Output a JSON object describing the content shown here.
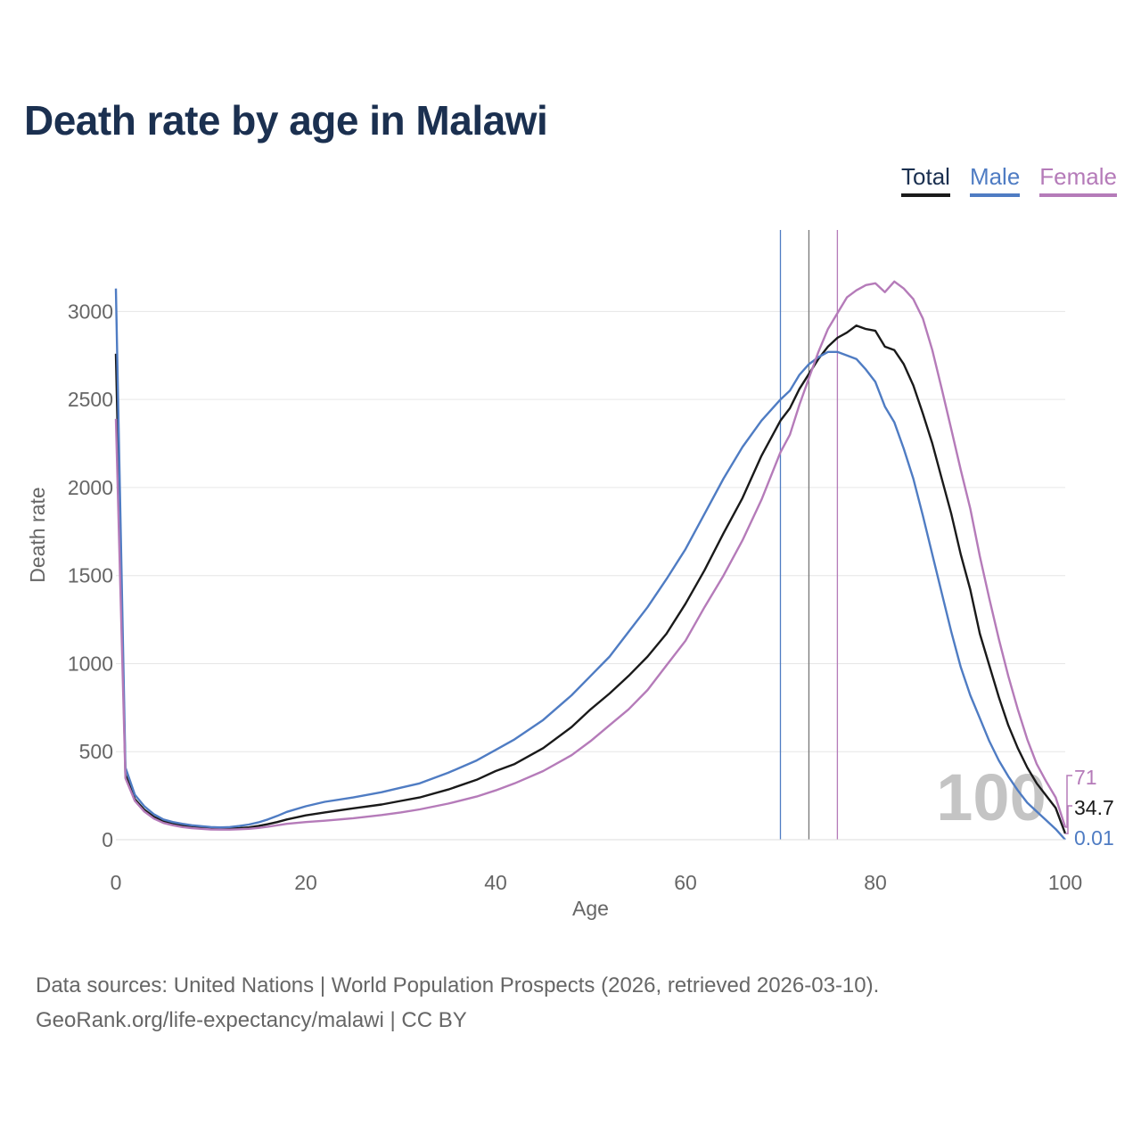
{
  "title": "Death rate by age in Malawi",
  "legend": [
    {
      "label": "Total",
      "color": "#1a1a1a"
    },
    {
      "label": "Male",
      "color": "#4f7cc3"
    },
    {
      "label": "Female",
      "color": "#b57bb9"
    }
  ],
  "watermark": "100",
  "end_labels": {
    "female": "71",
    "total": "34.7",
    "male": "0.01"
  },
  "footer": {
    "source": "Data sources: United Nations | World Population Prospects (2026, retrieved 2026-03-10).",
    "link": "GeoRank.org/life-expectancy/malawi | CC BY"
  },
  "chart_data": {
    "type": "line",
    "title": "Death rate by age in Malawi",
    "xlabel": "Age",
    "ylabel": "Death rate",
    "xlim": [
      0,
      100
    ],
    "ylim": [
      0,
      3250
    ],
    "x_ticks": [
      0,
      20,
      40,
      60,
      80,
      100
    ],
    "y_ticks": [
      0,
      500,
      1000,
      1500,
      2000,
      2500,
      3000
    ],
    "grid": true,
    "legend_position": "top-right",
    "vertical_markers": [
      {
        "series": "Male",
        "x": 70
      },
      {
        "series": "Total",
        "x": 73
      },
      {
        "series": "Female",
        "x": 76
      }
    ],
    "series": [
      {
        "name": "Total",
        "color": "#1a1a1a",
        "points": [
          [
            0,
            2760
          ],
          [
            1,
            370
          ],
          [
            2,
            230
          ],
          [
            3,
            170
          ],
          [
            4,
            130
          ],
          [
            5,
            105
          ],
          [
            6,
            92
          ],
          [
            7,
            82
          ],
          [
            8,
            75
          ],
          [
            9,
            70
          ],
          [
            10,
            66
          ],
          [
            11,
            64
          ],
          [
            12,
            64
          ],
          [
            13,
            66
          ],
          [
            14,
            70
          ],
          [
            15,
            78
          ],
          [
            16,
            88
          ],
          [
            17,
            100
          ],
          [
            18,
            115
          ],
          [
            20,
            138
          ],
          [
            22,
            155
          ],
          [
            25,
            178
          ],
          [
            28,
            200
          ],
          [
            30,
            220
          ],
          [
            32,
            240
          ],
          [
            35,
            285
          ],
          [
            38,
            340
          ],
          [
            40,
            390
          ],
          [
            42,
            430
          ],
          [
            45,
            520
          ],
          [
            48,
            640
          ],
          [
            50,
            740
          ],
          [
            52,
            830
          ],
          [
            54,
            930
          ],
          [
            56,
            1040
          ],
          [
            58,
            1170
          ],
          [
            60,
            1340
          ],
          [
            62,
            1530
          ],
          [
            64,
            1740
          ],
          [
            66,
            1940
          ],
          [
            68,
            2180
          ],
          [
            70,
            2380
          ],
          [
            71,
            2450
          ],
          [
            72,
            2560
          ],
          [
            74,
            2730
          ],
          [
            75,
            2800
          ],
          [
            76,
            2850
          ],
          [
            77,
            2880
          ],
          [
            78,
            2920
          ],
          [
            79,
            2900
          ],
          [
            80,
            2890
          ],
          [
            81,
            2800
          ],
          [
            82,
            2780
          ],
          [
            83,
            2700
          ],
          [
            84,
            2580
          ],
          [
            85,
            2420
          ],
          [
            86,
            2250
          ],
          [
            87,
            2050
          ],
          [
            88,
            1850
          ],
          [
            89,
            1620
          ],
          [
            90,
            1420
          ],
          [
            91,
            1170
          ],
          [
            92,
            990
          ],
          [
            93,
            810
          ],
          [
            94,
            650
          ],
          [
            95,
            520
          ],
          [
            96,
            410
          ],
          [
            97,
            320
          ],
          [
            98,
            250
          ],
          [
            99,
            180
          ],
          [
            100,
            34.7
          ]
        ]
      },
      {
        "name": "Male",
        "color": "#4f7cc3",
        "points": [
          [
            0,
            3130
          ],
          [
            1,
            410
          ],
          [
            2,
            255
          ],
          [
            3,
            190
          ],
          [
            4,
            145
          ],
          [
            5,
            115
          ],
          [
            6,
            100
          ],
          [
            7,
            90
          ],
          [
            8,
            82
          ],
          [
            9,
            77
          ],
          [
            10,
            72
          ],
          [
            11,
            70
          ],
          [
            12,
            72
          ],
          [
            13,
            78
          ],
          [
            14,
            86
          ],
          [
            15,
            98
          ],
          [
            16,
            115
          ],
          [
            17,
            135
          ],
          [
            18,
            158
          ],
          [
            20,
            190
          ],
          [
            22,
            215
          ],
          [
            25,
            240
          ],
          [
            28,
            270
          ],
          [
            30,
            295
          ],
          [
            32,
            320
          ],
          [
            35,
            380
          ],
          [
            38,
            450
          ],
          [
            40,
            510
          ],
          [
            42,
            570
          ],
          [
            45,
            680
          ],
          [
            48,
            820
          ],
          [
            50,
            930
          ],
          [
            52,
            1040
          ],
          [
            54,
            1180
          ],
          [
            56,
            1320
          ],
          [
            58,
            1480
          ],
          [
            60,
            1650
          ],
          [
            62,
            1850
          ],
          [
            64,
            2050
          ],
          [
            66,
            2230
          ],
          [
            68,
            2380
          ],
          [
            70,
            2500
          ],
          [
            71,
            2550
          ],
          [
            72,
            2640
          ],
          [
            73,
            2700
          ],
          [
            74,
            2740
          ],
          [
            75,
            2770
          ],
          [
            76,
            2770
          ],
          [
            77,
            2750
          ],
          [
            78,
            2730
          ],
          [
            79,
            2670
          ],
          [
            80,
            2600
          ],
          [
            81,
            2460
          ],
          [
            82,
            2370
          ],
          [
            83,
            2220
          ],
          [
            84,
            2050
          ],
          [
            85,
            1840
          ],
          [
            86,
            1620
          ],
          [
            87,
            1400
          ],
          [
            88,
            1180
          ],
          [
            89,
            980
          ],
          [
            90,
            820
          ],
          [
            91,
            690
          ],
          [
            92,
            560
          ],
          [
            93,
            450
          ],
          [
            94,
            360
          ],
          [
            95,
            280
          ],
          [
            96,
            210
          ],
          [
            97,
            160
          ],
          [
            98,
            110
          ],
          [
            99,
            60
          ],
          [
            100,
            0.01
          ]
        ]
      },
      {
        "name": "Female",
        "color": "#b57bb9",
        "points": [
          [
            0,
            2390
          ],
          [
            1,
            350
          ],
          [
            2,
            220
          ],
          [
            3,
            160
          ],
          [
            4,
            120
          ],
          [
            5,
            95
          ],
          [
            6,
            82
          ],
          [
            7,
            72
          ],
          [
            8,
            66
          ],
          [
            9,
            62
          ],
          [
            10,
            58
          ],
          [
            11,
            57
          ],
          [
            12,
            57
          ],
          [
            13,
            59
          ],
          [
            14,
            62
          ],
          [
            15,
            67
          ],
          [
            16,
            74
          ],
          [
            17,
            82
          ],
          [
            18,
            90
          ],
          [
            20,
            100
          ],
          [
            22,
            108
          ],
          [
            25,
            122
          ],
          [
            28,
            140
          ],
          [
            30,
            155
          ],
          [
            32,
            172
          ],
          [
            35,
            205
          ],
          [
            38,
            245
          ],
          [
            40,
            280
          ],
          [
            42,
            320
          ],
          [
            45,
            390
          ],
          [
            48,
            480
          ],
          [
            50,
            560
          ],
          [
            52,
            650
          ],
          [
            54,
            740
          ],
          [
            56,
            850
          ],
          [
            58,
            990
          ],
          [
            60,
            1130
          ],
          [
            62,
            1320
          ],
          [
            64,
            1500
          ],
          [
            66,
            1700
          ],
          [
            68,
            1930
          ],
          [
            70,
            2200
          ],
          [
            71,
            2300
          ],
          [
            72,
            2470
          ],
          [
            73,
            2620
          ],
          [
            74,
            2770
          ],
          [
            75,
            2900
          ],
          [
            76,
            2990
          ],
          [
            77,
            3080
          ],
          [
            78,
            3120
          ],
          [
            79,
            3150
          ],
          [
            80,
            3160
          ],
          [
            81,
            3110
          ],
          [
            82,
            3170
          ],
          [
            83,
            3130
          ],
          [
            84,
            3070
          ],
          [
            85,
            2960
          ],
          [
            86,
            2780
          ],
          [
            87,
            2560
          ],
          [
            88,
            2330
          ],
          [
            89,
            2100
          ],
          [
            90,
            1880
          ],
          [
            91,
            1610
          ],
          [
            92,
            1370
          ],
          [
            93,
            1140
          ],
          [
            94,
            930
          ],
          [
            95,
            740
          ],
          [
            96,
            570
          ],
          [
            97,
            430
          ],
          [
            98,
            330
          ],
          [
            99,
            240
          ],
          [
            100,
            71
          ]
        ]
      }
    ]
  }
}
